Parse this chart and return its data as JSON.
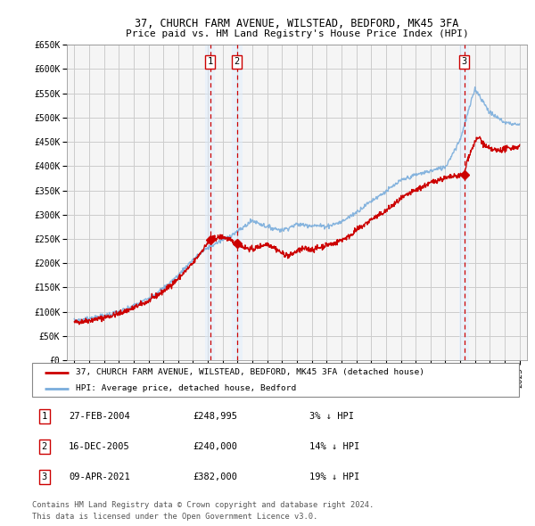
{
  "title1": "37, CHURCH FARM AVENUE, WILSTEAD, BEDFORD, MK45 3FA",
  "title2": "Price paid vs. HM Land Registry's House Price Index (HPI)",
  "ylabel_ticks": [
    "£0",
    "£50K",
    "£100K",
    "£150K",
    "£200K",
    "£250K",
    "£300K",
    "£350K",
    "£400K",
    "£450K",
    "£500K",
    "£550K",
    "£600K",
    "£650K"
  ],
  "ytick_vals": [
    0,
    50000,
    100000,
    150000,
    200000,
    250000,
    300000,
    350000,
    400000,
    450000,
    500000,
    550000,
    600000,
    650000
  ],
  "xlim_start": 1994.5,
  "xlim_end": 2025.5,
  "ylim_min": 0,
  "ylim_max": 650000,
  "background_color": "#ffffff",
  "grid_color": "#cccccc",
  "plot_bg_color": "#f5f5f5",
  "legend_entry1": "37, CHURCH FARM AVENUE, WILSTEAD, BEDFORD, MK45 3FA (detached house)",
  "legend_entry2": "HPI: Average price, detached house, Bedford",
  "sale_dates": [
    2004.15,
    2005.96,
    2021.27
  ],
  "sale_prices": [
    248995,
    240000,
    382000
  ],
  "sale_labels": [
    "1",
    "2",
    "3"
  ],
  "footer1": "Contains HM Land Registry data © Crown copyright and database right 2024.",
  "footer2": "This data is licensed under the Open Government Licence v3.0.",
  "hpi_color": "#7aaddc",
  "price_color": "#cc0000",
  "marker_box_color": "#cc0000",
  "dashed_line_color": "#cc0000",
  "shade_color": "#ddeeff",
  "table_rows": [
    [
      "1",
      "27-FEB-2004",
      "£248,995",
      "3% ↓ HPI"
    ],
    [
      "2",
      "16-DEC-2005",
      "£240,000",
      "14% ↓ HPI"
    ],
    [
      "3",
      "09-APR-2021",
      "£382,000",
      "19% ↓ HPI"
    ]
  ]
}
